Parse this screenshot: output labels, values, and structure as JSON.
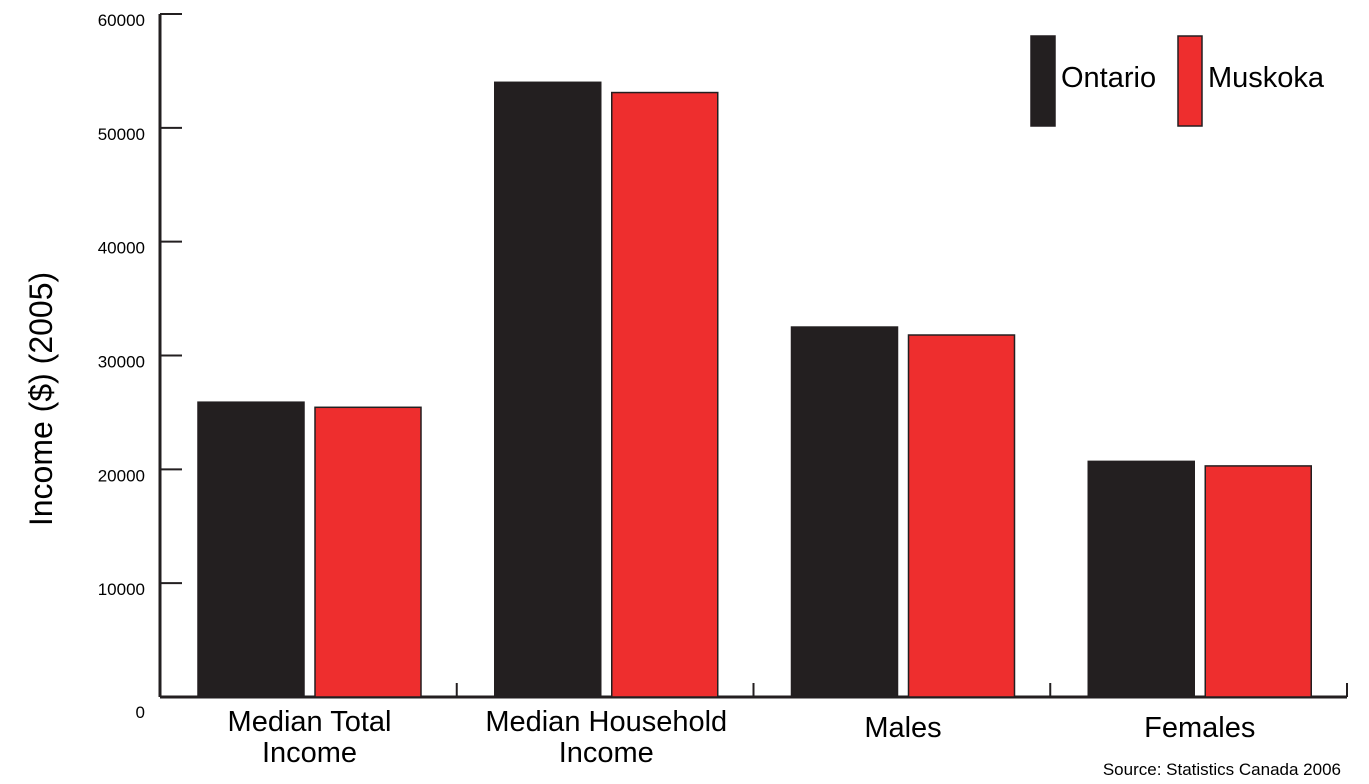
{
  "chart_data": {
    "type": "bar",
    "ylabel": "Income ($) (2005)",
    "ylim": [
      0,
      60000
    ],
    "yticks": [
      0,
      10000,
      20000,
      30000,
      40000,
      50000,
      60000
    ],
    "categories": [
      [
        "Median Total",
        "Income"
      ],
      [
        "Median Household",
        "Income"
      ],
      [
        "Males"
      ],
      [
        "Females"
      ]
    ],
    "series": [
      {
        "name": "Ontario",
        "color": "#231f20",
        "values": [
          25900,
          54000,
          32500,
          20700
        ]
      },
      {
        "name": "Muskoka",
        "color": "#ee2e2e",
        "values": [
          25450,
          53100,
          31800,
          20300
        ]
      }
    ],
    "legend_position": "top-right",
    "grid": false,
    "source": "Source: Statistics Canada 2006"
  }
}
